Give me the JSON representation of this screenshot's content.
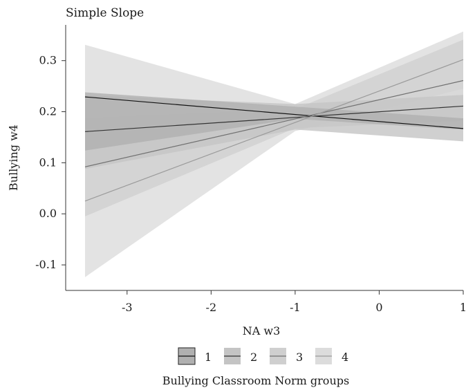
{
  "chart_data": {
    "type": "line",
    "title": "Simple Slope",
    "xlabel": "NA w3",
    "ylabel": "Bullying w4",
    "xlim": [
      -3.5,
      1
    ],
    "ylim": [
      -0.15,
      0.37
    ],
    "xticks": [
      -3,
      -2,
      -1,
      0,
      1
    ],
    "yticks": [
      -0.1,
      0.0,
      0.1,
      0.2,
      0.3
    ],
    "xtick_labels": [
      "-3",
      "-2",
      "-1",
      "0",
      "1"
    ],
    "ytick_labels": [
      "-0.1",
      "0.0",
      "0.1",
      "0.2",
      "0.3"
    ],
    "legend_title": "Bullying Classroom Norm groups",
    "legend_position": "bottom",
    "grid": false,
    "series": [
      {
        "name": "1",
        "line_color": "#111111",
        "band_color": "#b0b0b0",
        "x": [
          -3.5,
          1
        ],
        "y": [
          0.229,
          0.167
        ],
        "band": {
          "x": [
            -3.5,
            -1,
            1
          ],
          "lower": [
            0.124,
            0.186,
            0.165
          ],
          "upper": [
            0.238,
            0.21,
            0.187
          ]
        }
      },
      {
        "name": "2",
        "line_color": "#333333",
        "band_color": "#c4c4c4",
        "x": [
          -3.5,
          1
        ],
        "y": [
          0.161,
          0.211
        ],
        "band": {
          "x": [
            -3.5,
            -1,
            1
          ],
          "lower": [
            0.088,
            0.165,
            0.142
          ],
          "upper": [
            0.232,
            0.215,
            0.233
          ]
        }
      },
      {
        "name": "3",
        "line_color": "#707070",
        "band_color": "#cfcfcf",
        "x": [
          -3.5,
          1
        ],
        "y": [
          0.092,
          0.261
        ],
        "band": {
          "x": [
            -3.5,
            -1,
            1
          ],
          "lower": [
            -0.005,
            0.168,
            0.182
          ],
          "upper": [
            0.188,
            0.205,
            0.341
          ]
        }
      },
      {
        "name": "4",
        "line_color": "#9a9a9a",
        "band_color": "#dcdcdc",
        "x": [
          -3.5,
          1
        ],
        "y": [
          0.025,
          0.302
        ],
        "band": {
          "x": [
            -3.5,
            -1,
            1
          ],
          "lower": [
            -0.124,
            0.162,
            0.245
          ],
          "upper": [
            0.331,
            0.215,
            0.357
          ]
        }
      }
    ]
  }
}
